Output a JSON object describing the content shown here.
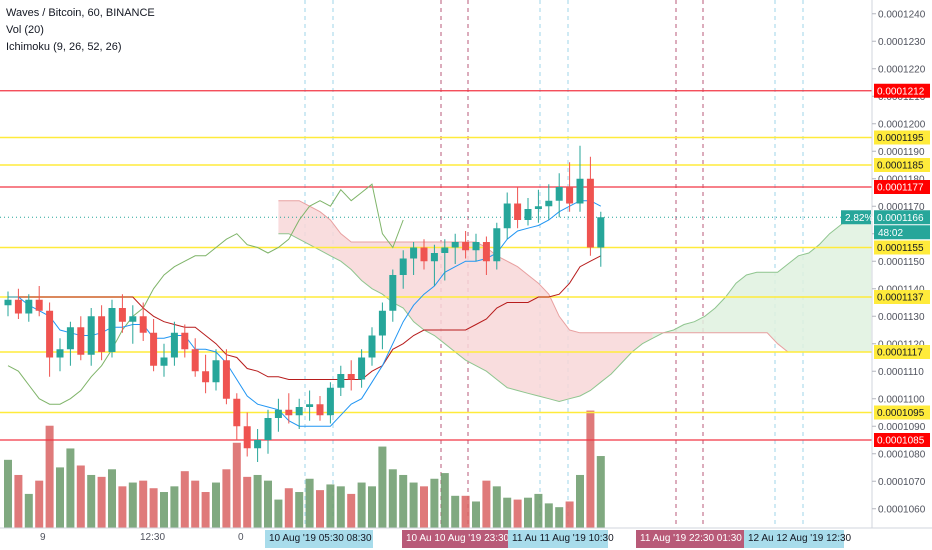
{
  "legend": {
    "symbol": "Waves / Bitcoin, 60, BINANCE",
    "vol": "Vol (20)",
    "ichimoku": "Ichimoku (9, 26, 52, 26)"
  },
  "colors": {
    "bull": "#26a69a",
    "bear": "#ef5350",
    "vol_bull": "#6a9a6a",
    "vol_bear": "#d96363",
    "tenkan": "#2196f3",
    "kijun": "#b71c1c",
    "chikou": "#7fb469",
    "cloud_bear": "#f8d7d8",
    "cloud_bull": "#dff1df",
    "level_yellow": "#ffeb3b",
    "level_red": "#f23645",
    "vline_blue": "#9fd4e8",
    "vline_purple": "#b85a78",
    "price_now": "#26a69a"
  },
  "price_axis": {
    "ticks": [
      "0.0001240",
      "0.0001230",
      "0.0001220",
      "0.0001210",
      "0.0001200",
      "0.0001190",
      "0.0001180",
      "0.0001170",
      "0.0001160",
      "0.0001150",
      "0.0001140",
      "0.0001130",
      "0.0001120",
      "0.0001110",
      "0.0001100",
      "0.0001090",
      "0.0001080",
      "0.0001070",
      "0.0001060"
    ],
    "change_badge": "2.82%",
    "countdown": "48:02"
  },
  "time_axis": {
    "plain_labels": [
      "9",
      "12:30",
      "0"
    ],
    "badges_blue": [
      "10 Aug '19  05:30  08:30",
      "11 Au  11 Aug '19  10:30",
      "12 Au  12 Aug '19  12:30"
    ],
    "badges_purple": [
      "10 Au  10 Aug '19  23:30",
      "11 Aug '19  22:30  01:30"
    ]
  },
  "chart_data": {
    "type": "candlestick",
    "title": "Waves / Bitcoin, 60, BINANCE",
    "ylim": [
      0.0001053,
      0.0001245
    ],
    "horizontal_levels": [
      {
        "value": 0.0001212,
        "label": "0.0001212",
        "style": "red"
      },
      {
        "value": 0.0001195,
        "label": "0.0001195",
        "style": "yellow"
      },
      {
        "value": 0.0001185,
        "label": "0.0001185",
        "style": "yellow"
      },
      {
        "value": 0.0001177,
        "label": "0.0001177",
        "style": "red"
      },
      {
        "value": 0.0001166,
        "label": "0.0001166",
        "style": "current"
      },
      {
        "value": 0.0001155,
        "label": "0.0001155",
        "style": "yellow"
      },
      {
        "value": 0.0001137,
        "label": "0.0001137",
        "style": "yellow"
      },
      {
        "value": 0.0001117,
        "label": "0.0001117",
        "style": "yellow"
      },
      {
        "value": 0.0001095,
        "label": "0.0001095",
        "style": "yellow"
      },
      {
        "value": 0.0001085,
        "label": "0.0001085",
        "style": "red"
      }
    ],
    "candles": [
      [
        0.0001134,
        0.0001139,
        0.000113,
        0.0001136
      ],
      [
        0.0001136,
        0.000114,
        0.0001129,
        0.0001131
      ],
      [
        0.0001131,
        0.0001138,
        0.0001128,
        0.0001136
      ],
      [
        0.0001136,
        0.0001141,
        0.000113,
        0.0001132
      ],
      [
        0.0001132,
        0.0001135,
        0.0001108,
        0.0001115
      ],
      [
        0.0001115,
        0.0001122,
        0.000111,
        0.0001118
      ],
      [
        0.0001118,
        0.0001128,
        0.0001112,
        0.0001126
      ],
      [
        0.0001126,
        0.000113,
        0.0001114,
        0.0001116
      ],
      [
        0.0001116,
        0.0001133,
        0.0001112,
        0.000113
      ],
      [
        0.000113,
        0.0001134,
        0.0001114,
        0.0001117
      ],
      [
        0.0001117,
        0.0001136,
        0.0001115,
        0.0001133
      ],
      [
        0.0001133,
        0.0001138,
        0.0001124,
        0.0001128
      ],
      [
        0.0001128,
        0.0001134,
        0.000112,
        0.000113
      ],
      [
        0.000113,
        0.0001135,
        0.0001121,
        0.0001124
      ],
      [
        0.0001124,
        0.0001129,
        0.000111,
        0.0001112
      ],
      [
        0.0001112,
        0.000112,
        0.0001108,
        0.0001115
      ],
      [
        0.0001115,
        0.0001128,
        0.0001112,
        0.0001124
      ],
      [
        0.0001124,
        0.0001127,
        0.0001115,
        0.0001118
      ],
      [
        0.0001118,
        0.0001122,
        0.0001108,
        0.000111
      ],
      [
        0.000111,
        0.0001116,
        0.0001102,
        0.0001106
      ],
      [
        0.0001106,
        0.0001118,
        0.0001103,
        0.0001114
      ],
      [
        0.0001114,
        0.0001118,
        0.0001098,
        0.00011
      ],
      [
        0.00011,
        0.0001102,
        0.0001085,
        0.000109
      ],
      [
        0.000109,
        0.0001095,
        0.0001079,
        0.0001082
      ],
      [
        0.0001082,
        0.0001089,
        0.0001077,
        0.0001085
      ],
      [
        0.0001085,
        0.0001096,
        0.000108,
        0.0001093
      ],
      [
        0.0001093,
        0.00011,
        0.0001088,
        0.0001096
      ],
      [
        0.0001096,
        0.0001102,
        0.0001091,
        0.0001094
      ],
      [
        0.0001094,
        0.00011,
        0.0001089,
        0.0001097
      ],
      [
        0.0001097,
        0.0001103,
        0.0001092,
        0.0001098
      ],
      [
        0.0001098,
        0.0001101,
        0.0001092,
        0.0001094
      ],
      [
        0.0001094,
        0.0001106,
        0.0001091,
        0.0001104
      ],
      [
        0.0001104,
        0.0001112,
        0.0001101,
        0.0001109
      ],
      [
        0.0001109,
        0.0001114,
        0.0001103,
        0.0001107
      ],
      [
        0.0001107,
        0.0001118,
        0.0001104,
        0.0001115
      ],
      [
        0.0001115,
        0.0001126,
        0.0001112,
        0.0001123
      ],
      [
        0.0001123,
        0.0001135,
        0.0001118,
        0.0001132
      ],
      [
        0.0001132,
        0.0001147,
        0.0001128,
        0.0001145
      ],
      [
        0.0001145,
        0.0001154,
        0.000114,
        0.0001151
      ],
      [
        0.0001151,
        0.0001157,
        0.0001145,
        0.0001155
      ],
      [
        0.0001155,
        0.0001158,
        0.0001147,
        0.000115
      ],
      [
        0.000115,
        0.0001156,
        0.0001141,
        0.0001153
      ],
      [
        0.0001153,
        0.0001158,
        0.0001143,
        0.0001155
      ],
      [
        0.0001155,
        0.000116,
        0.0001149,
        0.0001157
      ],
      [
        0.0001157,
        0.0001161,
        0.0001151,
        0.0001154
      ],
      [
        0.0001154,
        0.000116,
        0.000115,
        0.0001157
      ],
      [
        0.0001157,
        0.0001159,
        0.0001145,
        0.000115
      ],
      [
        0.000115,
        0.0001164,
        0.0001147,
        0.0001162
      ],
      [
        0.0001162,
        0.0001175,
        0.0001158,
        0.0001171
      ],
      [
        0.0001171,
        0.0001177,
        0.0001162,
        0.0001165
      ],
      [
        0.0001165,
        0.0001173,
        0.0001163,
        0.0001169
      ],
      [
        0.0001169,
        0.0001176,
        0.0001164,
        0.000117
      ],
      [
        0.000117,
        0.0001178,
        0.0001165,
        0.0001172
      ],
      [
        0.0001172,
        0.0001182,
        0.0001166,
        0.0001177
      ],
      [
        0.0001177,
        0.0001186,
        0.0001168,
        0.0001171
      ],
      [
        0.0001171,
        0.0001192,
        0.0001168,
        0.000118
      ],
      [
        0.000118,
        0.0001188,
        0.0001152,
        0.0001155
      ],
      [
        0.0001155,
        0.0001168,
        0.0001148,
        0.0001166
      ]
    ],
    "volume": [
      180,
      140,
      90,
      125,
      270,
      160,
      210,
      165,
      140,
      135,
      155,
      110,
      120,
      125,
      105,
      95,
      110,
      150,
      125,
      95,
      120,
      155,
      225,
      135,
      140,
      125,
      75,
      105,
      95,
      130,
      100,
      115,
      110,
      90,
      120,
      110,
      215,
      155,
      140,
      120,
      110,
      130,
      145,
      85,
      85,
      70,
      125,
      110,
      80,
      75,
      80,
      90,
      65,
      55,
      70,
      140,
      310,
      190
    ],
    "volume_bear": [
      false,
      true,
      false,
      true,
      true,
      false,
      false,
      true,
      false,
      true,
      false,
      true,
      false,
      true,
      true,
      false,
      false,
      true,
      true,
      true,
      false,
      true,
      true,
      true,
      false,
      false,
      false,
      true,
      false,
      false,
      true,
      false,
      false,
      true,
      false,
      false,
      false,
      false,
      false,
      false,
      true,
      false,
      false,
      false,
      true,
      false,
      true,
      false,
      false,
      true,
      false,
      false,
      false,
      false,
      true,
      false,
      true,
      false
    ],
    "tenkan": [
      0.0001137,
      0.0001137,
      0.0001134,
      0.0001132,
      0.000113,
      0.0001125,
      0.0001124,
      0.0001123,
      0.0001123,
      0.0001124,
      0.0001126,
      0.0001126,
      0.0001127,
      0.0001127,
      0.0001122,
      0.0001122,
      0.0001123,
      0.0001123,
      0.0001118,
      0.0001118,
      0.0001117,
      0.0001113,
      0.0001107,
      0.0001101,
      0.0001098,
      0.0001097,
      0.0001096,
      0.0001092,
      0.000109,
      0.000109,
      0.000109,
      0.000109,
      0.0001094,
      0.0001098,
      0.00011,
      0.0001106,
      0.0001112,
      0.000112,
      0.0001128,
      0.0001134,
      0.0001138,
      0.0001141,
      0.0001146,
      0.0001148,
      0.000115,
      0.000115,
      0.0001151,
      0.0001153,
      0.0001158,
      0.0001161,
      0.0001162,
      0.0001163,
      0.0001165,
      0.0001168,
      0.000117,
      0.0001172,
      0.0001172,
      0.000117
    ],
    "kijun": [
      0.0001137,
      0.0001137,
      0.0001137,
      0.0001137,
      0.0001137,
      0.0001137,
      0.0001137,
      0.0001137,
      0.0001137,
      0.0001137,
      0.0001137,
      0.0001137,
      0.0001137,
      0.0001133,
      0.000113,
      0.0001128,
      0.0001127,
      0.0001126,
      0.0001126,
      0.0001123,
      0.000112,
      0.0001116,
      0.0001115,
      0.0001111,
      0.000111,
      0.0001108,
      0.0001108,
      0.0001107,
      0.0001107,
      0.0001107,
      0.0001107,
      0.0001107,
      0.0001107,
      0.0001107,
      0.0001107,
      0.000111,
      0.0001112,
      0.0001118,
      0.000112,
      0.0001123,
      0.0001125,
      0.0001125,
      0.0001125,
      0.0001125,
      0.0001125,
      0.0001127,
      0.0001129,
      0.0001133,
      0.0001135,
      0.0001135,
      0.0001135,
      0.0001137,
      0.0001137,
      0.0001138,
      0.0001142,
      0.0001148,
      0.000115,
      0.0001152
    ],
    "chikou": [
      0.0001112,
      0.000111,
      0.0001105,
      0.00011,
      0.0001098,
      0.0001098,
      0.00011,
      0.0001103,
      0.0001108,
      0.0001112,
      0.0001118,
      0.0001125,
      0.000113,
      0.0001133,
      0.000114,
      0.0001145,
      0.0001148,
      0.000115,
      0.0001152,
      0.0001152,
      0.0001155,
      0.0001158,
      0.000116,
      0.0001156,
      0.0001155,
      0.0001153,
      0.0001155,
      0.0001158,
      0.0001165,
      0.000117,
      0.0001172,
      0.000117,
      0.0001176,
      0.0001172,
      0.0001175,
      0.0001178,
      0.000116,
      0.0001155,
      0.0001165
    ],
    "span_a": [
      0.000116,
      0.000116,
      0.0001158,
      0.0001156,
      0.0001154,
      0.0001152,
      0.000115,
      0.0001147,
      0.0001143,
      0.000114,
      0.0001138,
      0.0001135,
      0.0001133,
      0.0001128,
      0.0001125,
      0.0001123,
      0.000112,
      0.0001117,
      0.0001114,
      0.0001112,
      0.000111,
      0.0001107,
      0.0001104,
      0.0001103,
      0.0001102,
      0.0001101,
      0.00011,
      0.0001099,
      0.00011,
      0.0001101,
      0.0001103,
      0.0001106,
      0.0001109,
      0.0001113,
      0.0001117,
      0.000112,
      0.0001122,
      0.0001124,
      0.0001125,
      0.0001127,
      0.0001128,
      0.000113,
      0.0001133,
      0.0001137,
      0.0001142,
      0.0001145,
      0.0001146,
      0.0001146,
      0.0001146,
      0.0001149,
      0.0001152,
      0.0001153,
      0.0001156,
      0.000116,
      0.0001163,
      0.0001166,
      0.0001167,
      0.0001167
    ],
    "span_b": [
      0.0001172,
      0.0001172,
      0.0001172,
      0.000117,
      0.0001168,
      0.0001165,
      0.000116,
      0.0001157,
      0.0001157,
      0.0001157,
      0.0001157,
      0.0001157,
      0.0001157,
      0.0001157,
      0.0001157,
      0.0001157,
      0.0001157,
      0.0001157,
      0.0001157,
      0.0001157,
      0.0001155,
      0.0001152,
      0.000115,
      0.0001148,
      0.0001145,
      0.0001142,
      0.0001138,
      0.000113,
      0.0001125,
      0.0001124,
      0.0001124,
      0.0001124,
      0.0001124,
      0.0001124,
      0.0001124,
      0.0001124,
      0.0001124,
      0.0001124,
      0.0001124,
      0.0001124,
      0.0001124,
      0.0001124,
      0.0001124,
      0.0001124,
      0.0001124,
      0.0001124,
      0.0001124,
      0.0001124,
      0.000112,
      0.0001117,
      0.0001117,
      0.0001117,
      0.0001117,
      0.0001117,
      0.0001117,
      0.0001117,
      0.0001117,
      0.0001117
    ]
  }
}
